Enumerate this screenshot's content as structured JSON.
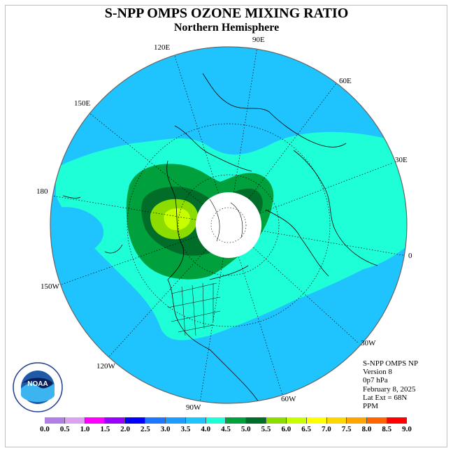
{
  "title": "S-NPP OMPS OZONE MIXING RATIO",
  "subtitle": "Northern Hemisphere",
  "longitude_labels": [
    "90E",
    "60E",
    "30E",
    "0",
    "30W",
    "60W",
    "90W",
    "120W",
    "150W",
    "180",
    "150E",
    "120E"
  ],
  "info": {
    "line1": "S-NPP OMPS NP",
    "line2": "Version 8",
    "line3": "0p7 hPa",
    "line4": "February 8, 2025",
    "line5": "Lat Ext = 68N",
    "line6": "PPM"
  },
  "colorbar": {
    "ticks": [
      "0.0",
      "0.5",
      "1.0",
      "1.5",
      "2.0",
      "2.5",
      "3.0",
      "3.5",
      "4.0",
      "4.5",
      "5.0",
      "5.5",
      "6.0",
      "6.5",
      "7.0",
      "7.5",
      "8.0",
      "8.5",
      "9.0"
    ],
    "colors": [
      "#b27fe6",
      "#dca2f0",
      "#ff00ff",
      "#9900ff",
      "#0000ff",
      "#1e78ff",
      "#1e9bff",
      "#1fc4ff",
      "#1fffd7",
      "#00a03c",
      "#006e28",
      "#8cdc00",
      "#c8ff00",
      "#ffff00",
      "#ffd700",
      "#ffa500",
      "#ff6400",
      "#ff0000",
      "#8b5a3c"
    ]
  },
  "logo": {
    "text": "NOAA",
    "ring_text": "NATIONAL OCEANIC AND ATMOSPHERIC ADMINISTRATION U.S. DEPARTMENT OF COMMERCE"
  }
}
